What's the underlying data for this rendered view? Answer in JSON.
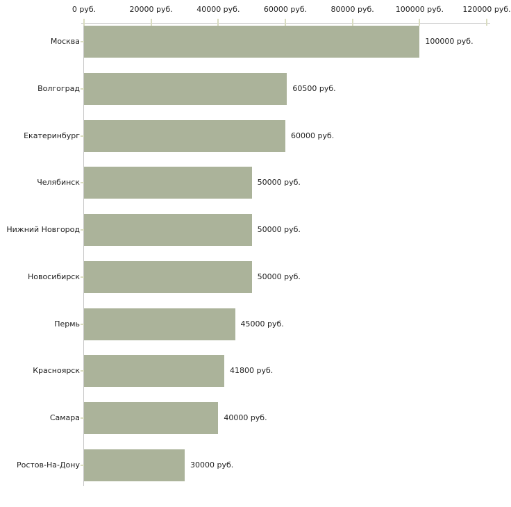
{
  "chart_data": {
    "type": "bar",
    "orientation": "horizontal",
    "unit": "руб.",
    "categories": [
      "Москва",
      "Волгоград",
      "Екатеринбург",
      "Челябинск",
      "Нижний Новгород",
      "Новосибирск",
      "Пермь",
      "Красноярск",
      "Самара",
      "Ростов-На-Дону"
    ],
    "values": [
      100000,
      60500,
      60000,
      50000,
      50000,
      50000,
      45000,
      41800,
      40000,
      30000
    ],
    "value_labels": [
      "100000 руб.",
      "60500 руб.",
      "60000 руб.",
      "50000 руб.",
      "50000 руб.",
      "50000 руб.",
      "45000 руб.",
      "41800 руб.",
      "40000 руб.",
      "30000 руб."
    ],
    "x_tick_values": [
      0,
      20000,
      40000,
      60000,
      80000,
      100000,
      120000
    ],
    "x_tick_labels": [
      "0 руб.",
      "20000 руб.",
      "40000 руб.",
      "60000 руб.",
      "80000 руб.",
      "100000 руб.",
      "120000 руб."
    ],
    "xlim": [
      0,
      120000
    ],
    "grid": "off",
    "legend": "none",
    "x_axis_position": "top",
    "colors": {
      "bar": "#abb39a",
      "axis_line": "#c7c7c7",
      "tick_mark": "#d9dcc0",
      "text": "#1c1c1c",
      "background": "#ffffff"
    }
  }
}
